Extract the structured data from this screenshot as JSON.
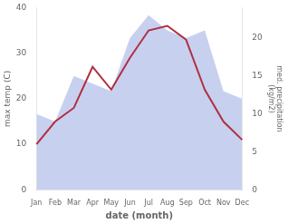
{
  "chart_data": {
    "type": "line",
    "xlabel": "date (month)",
    "ylabel": "max temp (C)",
    "y2label": "med. precipitation\n(kg/m2)",
    "categories": [
      "Jan",
      "Feb",
      "Mar",
      "Apr",
      "May",
      "Jun",
      "Jul",
      "Aug",
      "Sep",
      "Oct",
      "Nov",
      "Dec"
    ],
    "series": [
      {
        "type": "area",
        "color": "#c8d0f0",
        "axis": "y2",
        "values": [
          10,
          9,
          15,
          14,
          13,
          20,
          23,
          21,
          20,
          21,
          13,
          12
        ]
      },
      {
        "type": "line",
        "color": "#b03040",
        "values": [
          10,
          15,
          18,
          27,
          22,
          29,
          35,
          36,
          33,
          22,
          15,
          11
        ]
      }
    ],
    "ylim": [
      0,
      40
    ],
    "yticks": [
      0,
      10,
      20,
      30,
      40
    ],
    "y2lim": [
      0,
      24
    ],
    "y2ticks": [
      0,
      5,
      10,
      15,
      20
    ],
    "grid": false
  }
}
